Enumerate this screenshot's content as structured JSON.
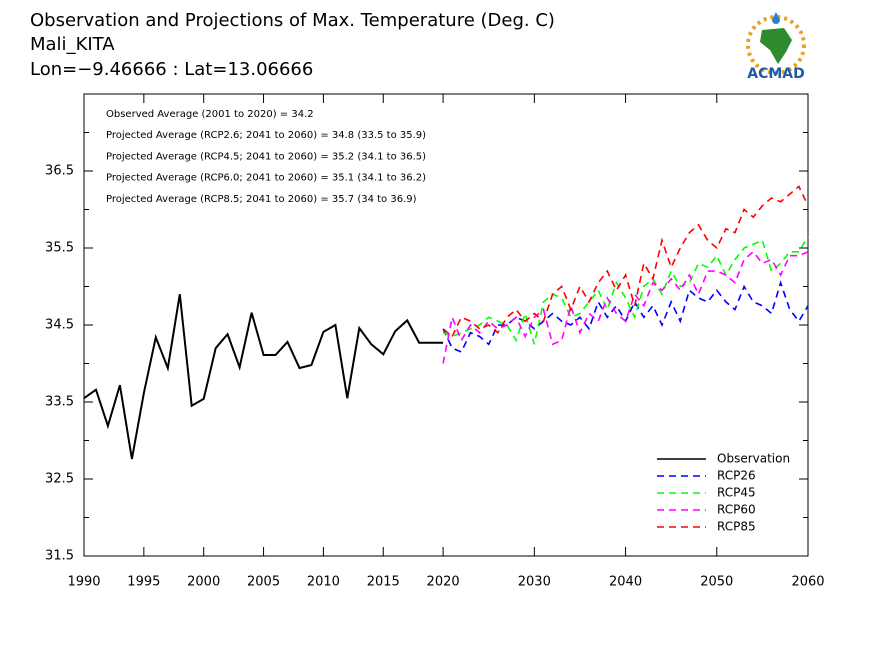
{
  "chart_data": {
    "type": "line",
    "title": "Observation and Projections of Max. Temperature (Deg. C)",
    "subtitle": "Mali_KITA",
    "location": "Lon=−9.46666 : Lat=13.06666",
    "logo": "ACMAD",
    "annotations": [
      "Observed Average (2001 to 2020) = 34.2",
      "Projected Average (RCP2.6; 2041 to 2060) = 34.8 (33.5 to 35.9)",
      "Projected Average (RCP4.5; 2041 to 2060) = 35.2 (34.1 to 36.5)",
      "Projected Average (RCP6.0; 2041 to 2060) = 35.1 (34.1 to 36.2)",
      "Projected Average (RCP8.5; 2041 to 2060) = 35.7 (34 to 36.9)"
    ],
    "xlim": [
      1990,
      2060
    ],
    "xticks": [
      1990,
      1995,
      2000,
      2005,
      2010,
      2015,
      2020,
      2030,
      2040,
      2050,
      2060
    ],
    "ylim": [
      31.5,
      37.5
    ],
    "yticks": [
      31.5,
      32.5,
      33.5,
      34.5,
      35.5,
      36.5
    ],
    "yminorticks": [
      32,
      33,
      34,
      35,
      36,
      37
    ],
    "legend_position": "lower right",
    "series": [
      {
        "name": "Observation",
        "color": "#000000",
        "style": "solid",
        "x": [
          1990,
          1991,
          1992,
          1993,
          1994,
          1995,
          1996,
          1997,
          1998,
          1999,
          2000,
          2001,
          2002,
          2003,
          2004,
          2005,
          2006,
          2007,
          2008,
          2009,
          2010,
          2011,
          2012,
          2013,
          2014,
          2015,
          2016,
          2017,
          2018,
          2019,
          2020
        ],
        "values": [
          33.55,
          33.66,
          33.19,
          33.72,
          32.76,
          33.62,
          34.34,
          33.94,
          34.9,
          33.45,
          33.54,
          34.2,
          34.38,
          33.95,
          34.66,
          34.11,
          34.11,
          34.28,
          33.94,
          33.98,
          34.41,
          34.5,
          33.55,
          34.46,
          34.25,
          34.12,
          34.42,
          34.56,
          34.27,
          34.27,
          34.27
        ]
      },
      {
        "name": "RCP26",
        "color": "#0000ff",
        "style": "dashed",
        "x": [
          2020,
          2021,
          2022,
          2023,
          2024,
          2025,
          2026,
          2027,
          2028,
          2029,
          2030,
          2031,
          2032,
          2033,
          2034,
          2035,
          2036,
          2037,
          2038,
          2039,
          2040,
          2041,
          2042,
          2043,
          2044,
          2045,
          2046,
          2047,
          2048,
          2049,
          2050,
          2051,
          2052,
          2053,
          2054,
          2055,
          2056,
          2057,
          2058,
          2059,
          2060
        ],
        "values": [
          34.45,
          34.2,
          34.15,
          34.4,
          34.35,
          34.25,
          34.5,
          34.5,
          34.6,
          34.55,
          34.45,
          34.55,
          34.65,
          34.55,
          34.5,
          34.6,
          34.45,
          34.8,
          34.6,
          34.75,
          34.55,
          34.8,
          34.6,
          34.75,
          34.5,
          34.8,
          34.55,
          34.95,
          34.85,
          34.8,
          34.95,
          34.8,
          34.7,
          35.0,
          34.8,
          34.75,
          34.65,
          35.05,
          34.7,
          34.55,
          34.75
        ]
      },
      {
        "name": "RCP45",
        "color": "#00ff00",
        "style": "dashed",
        "x": [
          2020,
          2021,
          2022,
          2023,
          2024,
          2025,
          2026,
          2027,
          2028,
          2029,
          2030,
          2031,
          2032,
          2033,
          2034,
          2035,
          2036,
          2037,
          2038,
          2039,
          2040,
          2041,
          2042,
          2043,
          2044,
          2045,
          2046,
          2047,
          2048,
          2049,
          2050,
          2051,
          2052,
          2053,
          2054,
          2055,
          2056,
          2057,
          2058,
          2059,
          2060
        ],
        "values": [
          34.4,
          34.35,
          34.4,
          34.45,
          34.5,
          34.6,
          34.55,
          34.5,
          34.3,
          34.65,
          34.25,
          34.8,
          34.9,
          34.85,
          34.6,
          34.65,
          34.8,
          34.95,
          34.7,
          35.05,
          34.85,
          34.6,
          35.0,
          35.1,
          34.9,
          35.2,
          35.0,
          35.05,
          35.3,
          35.25,
          35.4,
          35.15,
          35.35,
          35.5,
          35.55,
          35.6,
          35.2,
          35.3,
          35.45,
          35.45,
          35.65
        ]
      },
      {
        "name": "RCP60",
        "color": "#ff00ff",
        "style": "dashed",
        "x": [
          2020,
          2021,
          2022,
          2023,
          2024,
          2025,
          2026,
          2027,
          2028,
          2029,
          2030,
          2031,
          2032,
          2033,
          2034,
          2035,
          2036,
          2037,
          2038,
          2039,
          2040,
          2041,
          2042,
          2043,
          2044,
          2045,
          2046,
          2047,
          2048,
          2049,
          2050,
          2051,
          2052,
          2053,
          2054,
          2055,
          2056,
          2057,
          2058,
          2059,
          2060
        ],
        "values": [
          34.0,
          34.6,
          34.3,
          34.5,
          34.4,
          34.55,
          34.45,
          34.5,
          34.6,
          34.35,
          34.6,
          34.7,
          34.25,
          34.3,
          34.75,
          34.4,
          34.65,
          34.55,
          34.85,
          34.65,
          34.55,
          34.9,
          34.75,
          35.05,
          34.95,
          35.1,
          34.95,
          35.15,
          34.9,
          35.2,
          35.2,
          35.15,
          35.05,
          35.35,
          35.45,
          35.3,
          35.35,
          35.15,
          35.4,
          35.4,
          35.45
        ]
      },
      {
        "name": "RCP85",
        "color": "#ff0000",
        "style": "dashed",
        "x": [
          2020,
          2021,
          2022,
          2023,
          2024,
          2025,
          2026,
          2027,
          2028,
          2029,
          2030,
          2031,
          2032,
          2033,
          2034,
          2035,
          2036,
          2037,
          2038,
          2039,
          2040,
          2041,
          2042,
          2043,
          2044,
          2045,
          2046,
          2047,
          2048,
          2049,
          2050,
          2051,
          2052,
          2053,
          2054,
          2055,
          2056,
          2057,
          2058,
          2059,
          2060
        ],
        "values": [
          34.45,
          34.35,
          34.6,
          34.55,
          34.45,
          34.5,
          34.4,
          34.6,
          34.7,
          34.55,
          34.65,
          34.55,
          34.9,
          35.0,
          34.7,
          35.0,
          34.8,
          35.05,
          35.2,
          34.95,
          35.15,
          34.75,
          35.3,
          35.1,
          35.6,
          35.25,
          35.5,
          35.7,
          35.8,
          35.6,
          35.5,
          35.75,
          35.7,
          36.0,
          35.9,
          36.05,
          36.15,
          36.1,
          36.2,
          36.3,
          36.05
        ]
      }
    ]
  }
}
